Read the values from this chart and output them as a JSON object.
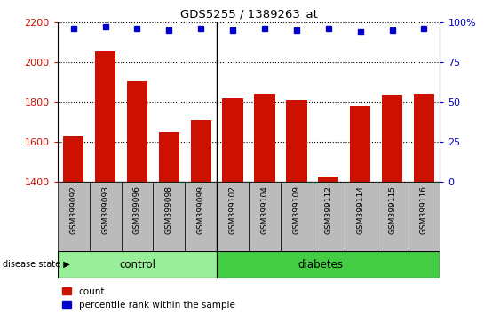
{
  "title": "GDS5255 / 1389263_at",
  "samples": [
    "GSM399092",
    "GSM399093",
    "GSM399096",
    "GSM399098",
    "GSM399099",
    "GSM399102",
    "GSM399104",
    "GSM399109",
    "GSM399112",
    "GSM399114",
    "GSM399115",
    "GSM399116"
  ],
  "bar_values": [
    1630,
    2055,
    1905,
    1650,
    1710,
    1820,
    1840,
    1810,
    1430,
    1780,
    1835,
    1840
  ],
  "percentile_values": [
    96,
    97,
    96,
    95,
    96,
    95,
    96,
    95,
    96,
    94,
    95,
    96
  ],
  "control_count": 5,
  "diabetes_count": 7,
  "ylim_left": [
    1400,
    2200
  ],
  "ylim_right": [
    0,
    100
  ],
  "bar_color": "#cc1100",
  "dot_color": "#0000cc",
  "control_color": "#99ee99",
  "diabetes_color": "#44cc44",
  "col_bg_color": "#bbbbbb",
  "grid_color": "#000000",
  "legend_count_label": "count",
  "legend_percentile_label": "percentile rank within the sample",
  "group_label": "disease state",
  "yticks_left": [
    1400,
    1600,
    1800,
    2000,
    2200
  ],
  "yticks_right": [
    0,
    25,
    50,
    75,
    100
  ],
  "ytick_right_labels": [
    "0",
    "25",
    "50",
    "75",
    "100%"
  ]
}
